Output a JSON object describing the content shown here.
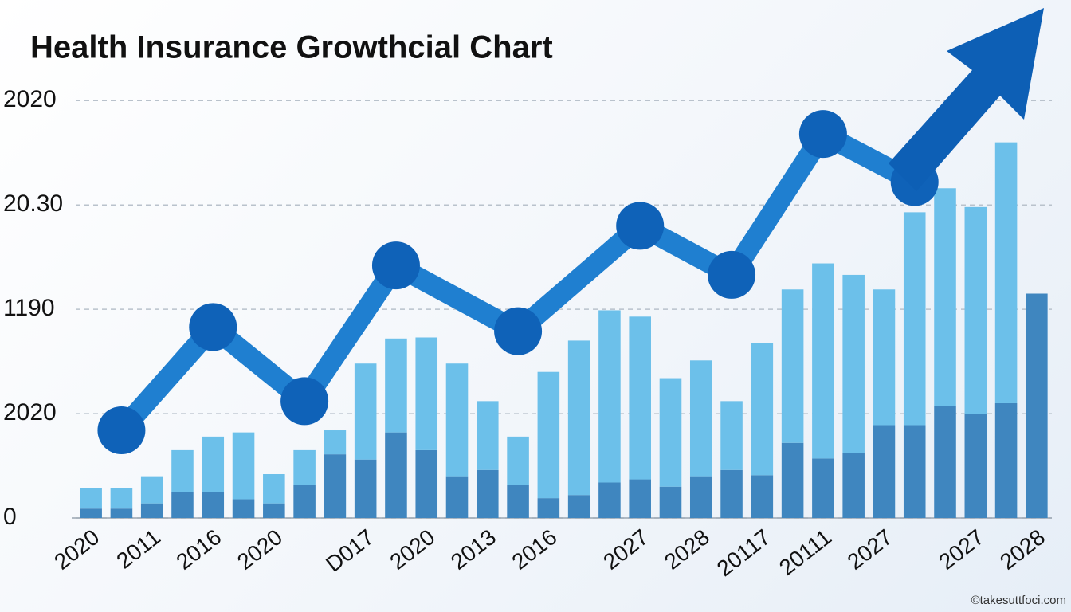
{
  "chart_data": {
    "type": "bar",
    "title": "Health Insurance Growthcial  Chart",
    "watermark": "©takesuttfoci.com",
    "categories": [
      "2020",
      null,
      "2011",
      null,
      "2016",
      null,
      "2020",
      null,
      null,
      "D017",
      null,
      "2020",
      null,
      "2013",
      null,
      "2016",
      null,
      null,
      "2027",
      null,
      "2028",
      null,
      "20117",
      null,
      "20111",
      null,
      "2027",
      null,
      null,
      "2027",
      null,
      "2028"
    ],
    "stacked": true,
    "series": [
      {
        "color": "#3f86bf",
        "values": [
          0.09,
          0.09,
          0.14,
          0.25,
          0.25,
          0.18,
          0.14,
          0.32,
          0.61,
          0.56,
          0.82,
          0.65,
          0.4,
          0.46,
          0.32,
          0.19,
          0.22,
          0.34,
          0.37,
          0.3,
          0.4,
          0.46,
          0.41,
          0.72,
          0.57,
          0.62,
          0.89,
          0.89,
          1.07,
          1.0,
          1.1,
          2.15
        ]
      },
      {
        "color": "#6cc0ea",
        "values": [
          0.2,
          0.2,
          0.26,
          0.4,
          0.53,
          0.64,
          0.28,
          0.33,
          0.23,
          0.92,
          0.9,
          1.08,
          1.08,
          0.66,
          0.46,
          1.21,
          1.48,
          1.65,
          1.56,
          1.04,
          1.11,
          0.66,
          1.27,
          1.47,
          1.87,
          1.71,
          1.3,
          2.04,
          2.09,
          1.98,
          2.5,
          0
        ]
      },
      {
        "type": "line",
        "color": "#1f7fd0",
        "marker_color": "#0f62b8",
        "x": [
          1,
          4,
          7,
          10,
          14,
          18,
          21,
          24,
          27
        ],
        "values": [
          0.84,
          1.83,
          1.12,
          2.42,
          1.79,
          2.8,
          2.33,
          3.68,
          3.22
        ]
      }
    ],
    "ylim": [
      0,
      4.3
    ],
    "yticks": [
      0,
      {
        "value": 1,
        "label": "2020"
      },
      {
        "value": 2,
        "label": "1190"
      },
      {
        "value": 3,
        "label": "20.30"
      },
      {
        "value": 4,
        "label": "2020"
      }
    ],
    "grid": true
  }
}
